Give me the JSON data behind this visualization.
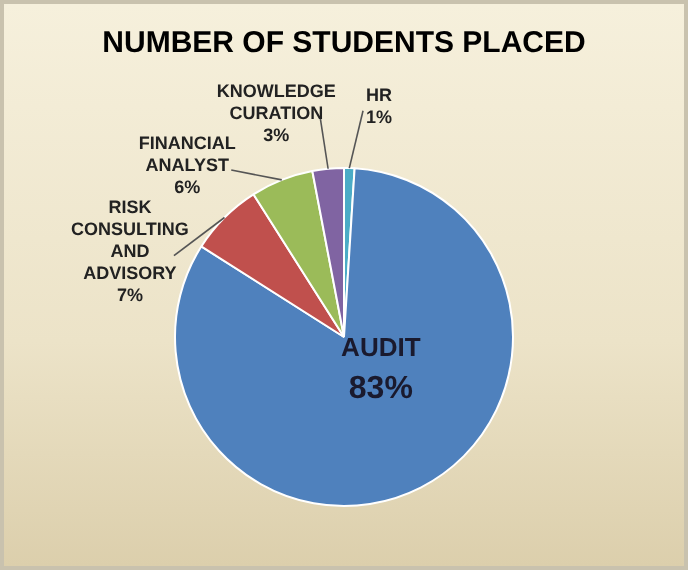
{
  "chart_data": {
    "type": "pie",
    "title": "NUMBER OF STUDENTS PLACED",
    "categories": [
      "HR",
      "AUDIT",
      "RISK CONSULTING AND ADVISORY",
      "FINANCIAL ANALYST",
      "KNOWLEDGE CURATION"
    ],
    "values": [
      1,
      83,
      7,
      6,
      3
    ],
    "colors": [
      "#4bacc6",
      "#4f81bd",
      "#c0504d",
      "#9bbb59",
      "#8064a2"
    ],
    "value_labels": [
      "1%",
      "83%",
      "7%",
      "6%",
      "3%"
    ],
    "legend": false
  }
}
